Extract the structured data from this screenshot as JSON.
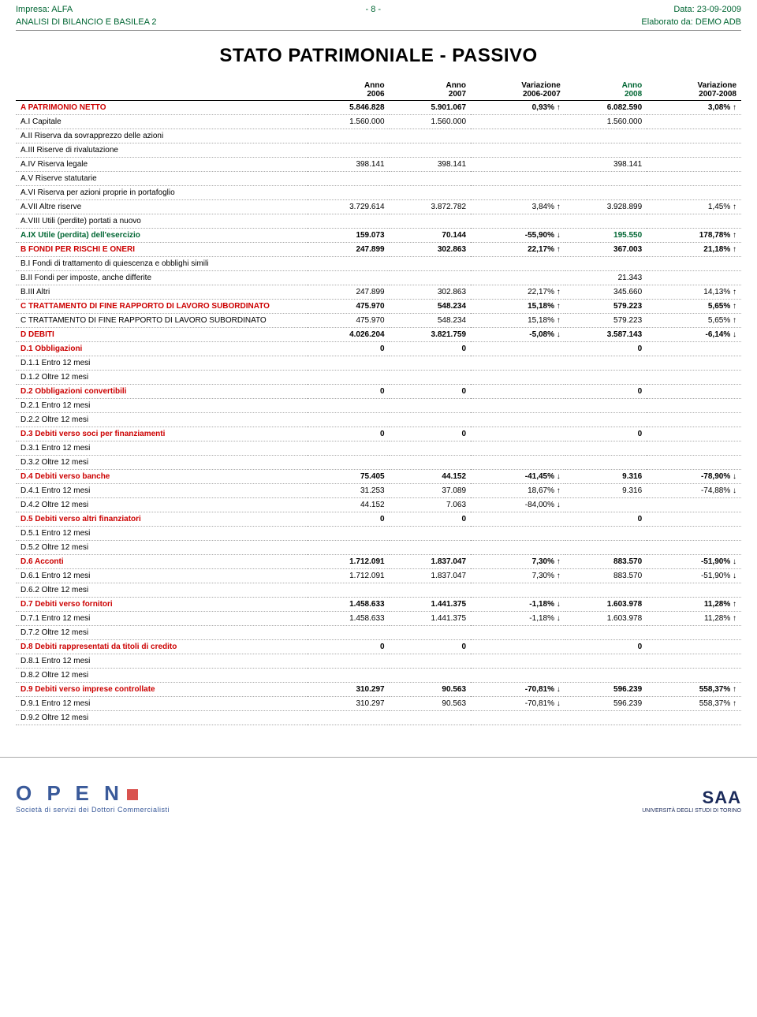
{
  "header": {
    "company_label": "Impresa:",
    "company_name": "ALFA",
    "page_marker": "- 8 -",
    "date_label": "Data:",
    "date_value": "23-09-2009",
    "subtitle_left": "ANALISI DI BILANCIO E BASILEA 2",
    "subtitle_right_label": "Elaborato da:",
    "subtitle_right_value": "DEMO ADB"
  },
  "title": "STATO PATRIMONIALE - PASSIVO",
  "cols": {
    "c1a": "Anno",
    "c1b": "2006",
    "c2a": "Anno",
    "c2b": "2007",
    "c3a": "Variazione",
    "c3b": "2006-2007",
    "c4a": "Anno",
    "c4b": "2008",
    "c5a": "Variazione",
    "c5b": "2007-2008"
  },
  "rows": [
    {
      "label": "A PATRIMONIO NETTO",
      "y2006": "5.846.828",
      "y2007": "5.901.067",
      "v0607": "0,93%",
      "a1": "up",
      "y2008": "6.082.590",
      "v0708": "3,08%",
      "a2": "up",
      "bold": true
    },
    {
      "label": "A.I Capitale",
      "y2006": "1.560.000",
      "y2007": "1.560.000",
      "v0607": "",
      "a1": "",
      "y2008": "1.560.000",
      "v0708": "",
      "a2": ""
    },
    {
      "label": "A.II Riserva da sovrapprezzo delle azioni",
      "y2006": "",
      "y2007": "",
      "v0607": "",
      "a1": "",
      "y2008": "",
      "v0708": "",
      "a2": ""
    },
    {
      "label": "A.III Riserve di rivalutazione",
      "y2006": "",
      "y2007": "",
      "v0607": "",
      "a1": "",
      "y2008": "",
      "v0708": "",
      "a2": ""
    },
    {
      "label": "A.IV Riserva legale",
      "y2006": "398.141",
      "y2007": "398.141",
      "v0607": "",
      "a1": "",
      "y2008": "398.141",
      "v0708": "",
      "a2": ""
    },
    {
      "label": "A.V Riserve statutarie",
      "y2006": "",
      "y2007": "",
      "v0607": "",
      "a1": "",
      "y2008": "",
      "v0708": "",
      "a2": ""
    },
    {
      "label": "A.VI Riserva per azioni proprie in portafoglio",
      "y2006": "",
      "y2007": "",
      "v0607": "",
      "a1": "",
      "y2008": "",
      "v0708": "",
      "a2": ""
    },
    {
      "label": "A.VII Altre riserve",
      "y2006": "3.729.614",
      "y2007": "3.872.782",
      "v0607": "3,84%",
      "a1": "up",
      "y2008": "3.928.899",
      "v0708": "1,45%",
      "a2": "up"
    },
    {
      "label": "A.VIII Utili (perdite) portati a nuovo",
      "y2006": "",
      "y2007": "",
      "v0607": "",
      "a1": "",
      "y2008": "",
      "v0708": "",
      "a2": ""
    },
    {
      "label": "A.IX Utile (perdita) dell'esercizio",
      "y2006": "159.073",
      "y2007": "70.144",
      "v0607": "-55,90%",
      "a1": "down",
      "y2008": "195.550",
      "v0708": "178,78%",
      "a2": "up",
      "bold": true,
      "green": true
    },
    {
      "label": "B FONDI PER RISCHI E ONERI",
      "y2006": "247.899",
      "y2007": "302.863",
      "v0607": "22,17%",
      "a1": "up",
      "y2008": "367.003",
      "v0708": "21,18%",
      "a2": "up",
      "bold": true
    },
    {
      "label": "B.I Fondi di trattamento di quiescenza e obblighi simili",
      "y2006": "",
      "y2007": "",
      "v0607": "",
      "a1": "",
      "y2008": "",
      "v0708": "",
      "a2": ""
    },
    {
      "label": "B.II Fondi per imposte, anche differite",
      "y2006": "",
      "y2007": "",
      "v0607": "",
      "a1": "",
      "y2008": "21.343",
      "v0708": "",
      "a2": ""
    },
    {
      "label": "B.III Altri",
      "y2006": "247.899",
      "y2007": "302.863",
      "v0607": "22,17%",
      "a1": "up",
      "y2008": "345.660",
      "v0708": "14,13%",
      "a2": "up"
    },
    {
      "label": "C TRATTAMENTO DI FINE RAPPORTO DI LAVORO SUBORDINATO",
      "y2006": "475.970",
      "y2007": "548.234",
      "v0607": "15,18%",
      "a1": "up",
      "y2008": "579.223",
      "v0708": "5,65%",
      "a2": "up",
      "bold": true
    },
    {
      "label": "C TRATTAMENTO DI FINE RAPPORTO DI LAVORO SUBORDINATO",
      "y2006": "475.970",
      "y2007": "548.234",
      "v0607": "15,18%",
      "a1": "up",
      "y2008": "579.223",
      "v0708": "5,65%",
      "a2": "up"
    },
    {
      "label": "D DEBITI",
      "y2006": "4.026.204",
      "y2007": "3.821.759",
      "v0607": "-5,08%",
      "a1": "down",
      "y2008": "3.587.143",
      "v0708": "-6,14%",
      "a2": "down",
      "bold": true
    },
    {
      "label": "D.1 Obbligazioni",
      "y2006": "0",
      "y2007": "0",
      "v0607": "",
      "a1": "",
      "y2008": "0",
      "v0708": "",
      "a2": "",
      "bold": true
    },
    {
      "label": "D.1.1 Entro 12 mesi",
      "y2006": "",
      "y2007": "",
      "v0607": "",
      "a1": "",
      "y2008": "",
      "v0708": "",
      "a2": ""
    },
    {
      "label": "D.1.2 Oltre 12 mesi",
      "y2006": "",
      "y2007": "",
      "v0607": "",
      "a1": "",
      "y2008": "",
      "v0708": "",
      "a2": ""
    },
    {
      "label": "D.2 Obbligazioni convertibili",
      "y2006": "0",
      "y2007": "0",
      "v0607": "",
      "a1": "",
      "y2008": "0",
      "v0708": "",
      "a2": "",
      "bold": true
    },
    {
      "label": "D.2.1 Entro 12 mesi",
      "y2006": "",
      "y2007": "",
      "v0607": "",
      "a1": "",
      "y2008": "",
      "v0708": "",
      "a2": ""
    },
    {
      "label": "D.2.2 Oltre 12 mesi",
      "y2006": "",
      "y2007": "",
      "v0607": "",
      "a1": "",
      "y2008": "",
      "v0708": "",
      "a2": ""
    },
    {
      "label": "D.3 Debiti verso soci per finanziamenti",
      "y2006": "0",
      "y2007": "0",
      "v0607": "",
      "a1": "",
      "y2008": "0",
      "v0708": "",
      "a2": "",
      "bold": true
    },
    {
      "label": "D.3.1 Entro 12 mesi",
      "y2006": "",
      "y2007": "",
      "v0607": "",
      "a1": "",
      "y2008": "",
      "v0708": "",
      "a2": ""
    },
    {
      "label": "D.3.2 Oltre 12 mesi",
      "y2006": "",
      "y2007": "",
      "v0607": "",
      "a1": "",
      "y2008": "",
      "v0708": "",
      "a2": ""
    },
    {
      "label": "D.4 Debiti verso banche",
      "y2006": "75.405",
      "y2007": "44.152",
      "v0607": "-41,45%",
      "a1": "down",
      "y2008": "9.316",
      "v0708": "-78,90%",
      "a2": "down",
      "bold": true
    },
    {
      "label": "D.4.1 Entro 12 mesi",
      "y2006": "31.253",
      "y2007": "37.089",
      "v0607": "18,67%",
      "a1": "up",
      "y2008": "9.316",
      "v0708": "-74,88%",
      "a2": "down"
    },
    {
      "label": "D.4.2 Oltre 12 mesi",
      "y2006": "44.152",
      "y2007": "7.063",
      "v0607": "-84,00%",
      "a1": "down",
      "y2008": "",
      "v0708": "",
      "a2": ""
    },
    {
      "label": "D.5 Debiti verso altri finanziatori",
      "y2006": "0",
      "y2007": "0",
      "v0607": "",
      "a1": "",
      "y2008": "0",
      "v0708": "",
      "a2": "",
      "bold": true
    },
    {
      "label": "D.5.1 Entro 12 mesi",
      "y2006": "",
      "y2007": "",
      "v0607": "",
      "a1": "",
      "y2008": "",
      "v0708": "",
      "a2": ""
    },
    {
      "label": "D.5.2 Oltre 12 mesi",
      "y2006": "",
      "y2007": "",
      "v0607": "",
      "a1": "",
      "y2008": "",
      "v0708": "",
      "a2": ""
    },
    {
      "label": "D.6 Acconti",
      "y2006": "1.712.091",
      "y2007": "1.837.047",
      "v0607": "7,30%",
      "a1": "up",
      "y2008": "883.570",
      "v0708": "-51,90%",
      "a2": "down",
      "bold": true
    },
    {
      "label": "D.6.1 Entro 12 mesi",
      "y2006": "1.712.091",
      "y2007": "1.837.047",
      "v0607": "7,30%",
      "a1": "up",
      "y2008": "883.570",
      "v0708": "-51,90%",
      "a2": "down"
    },
    {
      "label": "D.6.2 Oltre 12 mesi",
      "y2006": "",
      "y2007": "",
      "v0607": "",
      "a1": "",
      "y2008": "",
      "v0708": "",
      "a2": ""
    },
    {
      "label": "D.7 Debiti verso fornitori",
      "y2006": "1.458.633",
      "y2007": "1.441.375",
      "v0607": "-1,18%",
      "a1": "down",
      "y2008": "1.603.978",
      "v0708": "11,28%",
      "a2": "up",
      "bold": true
    },
    {
      "label": "D.7.1 Entro 12 mesi",
      "y2006": "1.458.633",
      "y2007": "1.441.375",
      "v0607": "-1,18%",
      "a1": "down",
      "y2008": "1.603.978",
      "v0708": "11,28%",
      "a2": "up"
    },
    {
      "label": "D.7.2 Oltre 12 mesi",
      "y2006": "",
      "y2007": "",
      "v0607": "",
      "a1": "",
      "y2008": "",
      "v0708": "",
      "a2": ""
    },
    {
      "label": "D.8 Debiti rappresentati da titoli di credito",
      "y2006": "0",
      "y2007": "0",
      "v0607": "",
      "a1": "",
      "y2008": "0",
      "v0708": "",
      "a2": "",
      "bold": true
    },
    {
      "label": "D.8.1 Entro 12 mesi",
      "y2006": "",
      "y2007": "",
      "v0607": "",
      "a1": "",
      "y2008": "",
      "v0708": "",
      "a2": ""
    },
    {
      "label": "D.8.2 Oltre 12 mesi",
      "y2006": "",
      "y2007": "",
      "v0607": "",
      "a1": "",
      "y2008": "",
      "v0708": "",
      "a2": ""
    },
    {
      "label": "D.9 Debiti verso imprese controllate",
      "y2006": "310.297",
      "y2007": "90.563",
      "v0607": "-70,81%",
      "a1": "down",
      "y2008": "596.239",
      "v0708": "558,37%",
      "a2": "up",
      "bold": true
    },
    {
      "label": "D.9.1 Entro 12 mesi",
      "y2006": "310.297",
      "y2007": "90.563",
      "v0607": "-70,81%",
      "a1": "down",
      "y2008": "596.239",
      "v0708": "558,37%",
      "a2": "up"
    },
    {
      "label": "D.9.2 Oltre 12 mesi",
      "y2006": "",
      "y2007": "",
      "v0607": "",
      "a1": "",
      "y2008": "",
      "v0708": "",
      "a2": ""
    }
  ],
  "footer": {
    "open_logo": "O P E N",
    "open_tag": "Società di servizi dei Dottori Commercialisti",
    "saa_logo": "SAA",
    "saa_tag": "UNIVERSITÀ DEGLI STUDI DI TORINO"
  }
}
